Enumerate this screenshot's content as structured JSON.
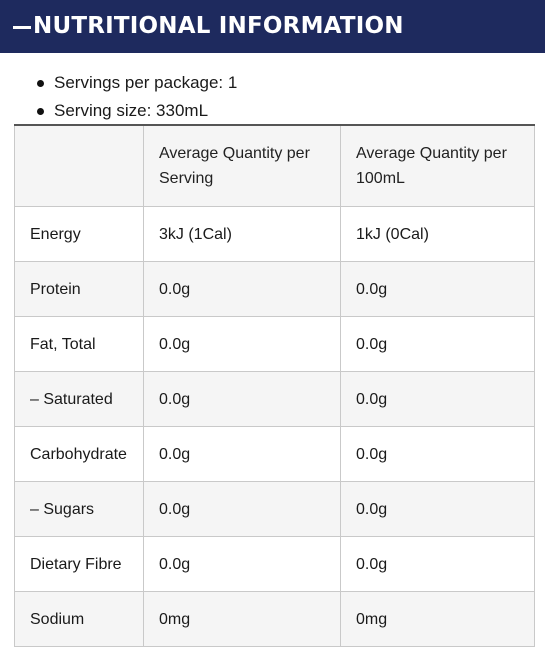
{
  "section": {
    "title": "NUTRITIONAL INFORMATION",
    "toggle_icon": "minus-icon"
  },
  "summary": [
    {
      "label": "Servings per package: 1"
    },
    {
      "label": "Serving size: 330mL"
    }
  ],
  "table": {
    "headers": [
      "",
      "Average Quantity per Serving",
      "Average Quantity per 100mL"
    ],
    "rows": [
      [
        "Energy",
        "3kJ (1Cal)",
        "1kJ (0Cal)"
      ],
      [
        "Protein",
        "0.0g",
        "0.0g"
      ],
      [
        "Fat, Total",
        "0.0g",
        "0.0g"
      ],
      [
        "– Saturated",
        "0.0g",
        "0.0g"
      ],
      [
        "Carbohydrate",
        "0.0g",
        "0.0g"
      ],
      [
        "– Sugars",
        "0.0g",
        "0.0g"
      ],
      [
        "Dietary Fibre",
        "0.0g",
        "0.0g"
      ],
      [
        "Sodium",
        "0mg",
        "0mg"
      ]
    ]
  },
  "colors": {
    "header_bg": "#1e2a5e",
    "header_text": "#ffffff",
    "stripe": "#f5f5f5"
  }
}
